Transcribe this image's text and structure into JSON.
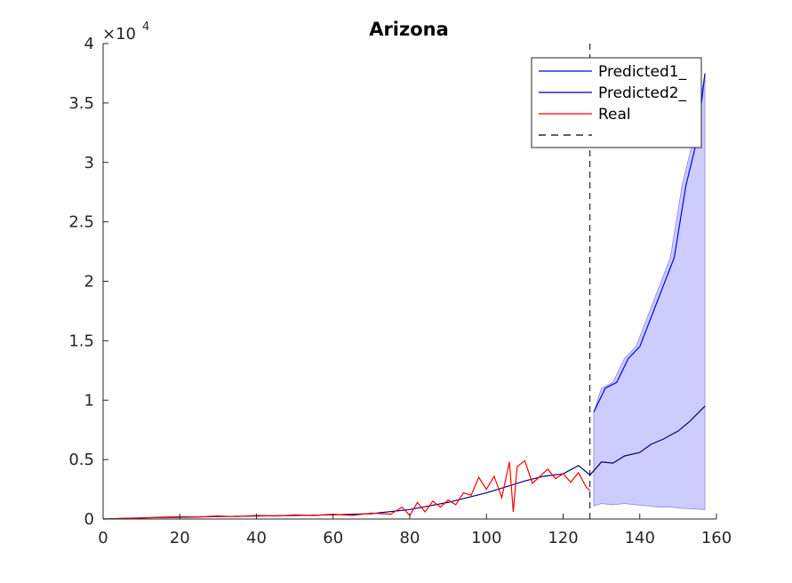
{
  "chart_data": {
    "type": "line",
    "title": "Arizona",
    "xlabel": "",
    "ylabel": "",
    "xlim": [
      0,
      160
    ],
    "ylim": [
      0,
      40000
    ],
    "y_exponent_label": "×10",
    "y_exponent_power": "4",
    "x_ticks": [
      0,
      20,
      40,
      60,
      80,
      100,
      120,
      140,
      160
    ],
    "x_tick_labels": [
      "0",
      "20",
      "40",
      "60",
      "80",
      "100",
      "120",
      "140",
      "160"
    ],
    "y_ticks": [
      0,
      5000,
      10000,
      15000,
      20000,
      25000,
      30000,
      35000,
      40000
    ],
    "y_tick_labels": [
      "0",
      "0.5",
      "1",
      "1.5",
      "2",
      "2.5",
      "3",
      "3.5",
      "4"
    ],
    "grid": false,
    "legend_position": "top-right",
    "divider_x": 127,
    "series": [
      {
        "name": "Predicted1_",
        "color": "#0000ff",
        "style": "solid",
        "x": [
          128,
          131,
          134,
          137,
          140,
          143,
          146,
          149,
          152,
          155,
          157
        ],
        "y": [
          9000,
          11000,
          11500,
          13500,
          14500,
          17000,
          19500,
          22000,
          28000,
          32000,
          37500
        ]
      },
      {
        "name": "Predicted2_",
        "color": "#000080",
        "style": "solid",
        "x": [
          0,
          10,
          20,
          30,
          40,
          50,
          60,
          70,
          80,
          85,
          90,
          95,
          100,
          105,
          110,
          115,
          120,
          124,
          127,
          130,
          133,
          136,
          140,
          143,
          146,
          150,
          153,
          157
        ],
        "y": [
          0,
          100,
          150,
          200,
          250,
          300,
          350,
          450,
          800,
          1100,
          1400,
          1800,
          2200,
          2700,
          3200,
          3600,
          3800,
          4500,
          3700,
          4800,
          4700,
          5300,
          5600,
          6300,
          6700,
          7400,
          8200,
          9500
        ]
      },
      {
        "name": "Real",
        "color": "#ff0000",
        "style": "solid",
        "x": [
          0,
          10,
          15,
          20,
          25,
          30,
          35,
          40,
          45,
          50,
          55,
          60,
          65,
          70,
          75,
          78,
          80,
          82,
          84,
          86,
          88,
          90,
          92,
          94,
          96,
          98,
          100,
          102,
          104,
          106,
          107,
          108,
          110,
          112,
          114,
          116,
          118,
          120,
          122,
          124,
          126,
          127
        ],
        "y": [
          0,
          80,
          150,
          200,
          180,
          250,
          200,
          300,
          250,
          350,
          300,
          400,
          300,
          500,
          400,
          1000,
          300,
          1400,
          600,
          1500,
          1000,
          1600,
          1200,
          2200,
          2000,
          3500,
          2500,
          3600,
          1800,
          4800,
          600,
          4400,
          4900,
          3000,
          3600,
          4200,
          3400,
          3800,
          3100,
          3900,
          2700,
          2400
        ]
      },
      {
        "name": "",
        "color": "#000000",
        "style": "dashed",
        "x": [
          127,
          127
        ],
        "y": [
          0,
          40000
        ]
      }
    ],
    "band": {
      "color": "#ccccff",
      "x": [
        128,
        130,
        133,
        136,
        139,
        142,
        145,
        148,
        151,
        154,
        157
      ],
      "upper": [
        9000,
        11000,
        11500,
        13500,
        14500,
        17000,
        19500,
        22000,
        28000,
        32000,
        37500
      ],
      "lower": [
        1100,
        1300,
        1200,
        1300,
        1200,
        1100,
        1000,
        1000,
        900,
        850,
        800
      ]
    },
    "legend": [
      {
        "label": "Predicted1_",
        "color": "#0000ff",
        "style": "solid"
      },
      {
        "label": "Predicted2_",
        "color": "#000080",
        "style": "solid"
      },
      {
        "label": "Real",
        "color": "#ff0000",
        "style": "solid"
      },
      {
        "label": "",
        "color": "#000000",
        "style": "dashed"
      }
    ]
  }
}
